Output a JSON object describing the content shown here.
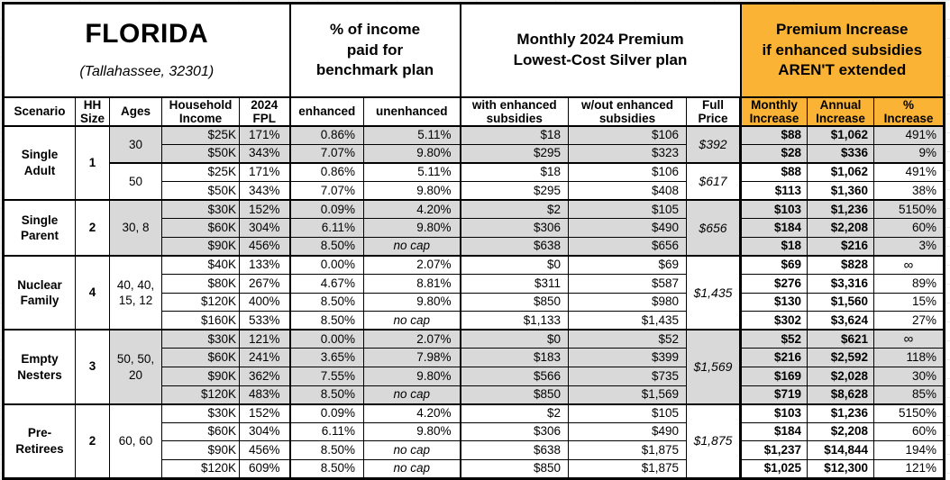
{
  "title": {
    "state": "FLORIDA",
    "location": "(Tallahassee, 32301)"
  },
  "colors": {
    "header_accent": "#FAB334",
    "row_shade": "#D9D9D9",
    "grid": "#000000"
  },
  "header_groups": {
    "benchmark": "% of income\npaid for\nbenchmark plan",
    "premium": "Monthly 2024 Premium\nLowest-Cost Silver plan",
    "increase": "Premium Increase\nif enhanced subsidies\nAREN'T extended"
  },
  "columns": [
    "Scenario",
    "HH\nSize",
    "Ages",
    "Household\nIncome",
    "2024\nFPL",
    "enhanced",
    "unenhanced",
    "with enhanced\nsubsidies",
    "w/out enhanced\nsubsidies",
    "Full\nPrice",
    "Monthly\nIncrease",
    "Annual\nIncrease",
    "%\nIncrease"
  ],
  "scenarios": [
    {
      "name": "Single\nAdult",
      "hh_size": "1",
      "groups": [
        {
          "ages": "30",
          "shaded": true,
          "full_price": "$392",
          "rows": [
            {
              "income": "$25K",
              "fpl": "171%",
              "enhanced": "0.86%",
              "unenhanced": "5.11%",
              "with_subsidies": "$18",
              "without_subsidies": "$106",
              "monthly_increase": "$88",
              "annual_increase": "$1,062",
              "pct_increase": "491%"
            },
            {
              "income": "$50K",
              "fpl": "343%",
              "enhanced": "7.07%",
              "unenhanced": "9.80%",
              "with_subsidies": "$295",
              "without_subsidies": "$323",
              "monthly_increase": "$28",
              "annual_increase": "$336",
              "pct_increase": "9%"
            }
          ]
        },
        {
          "ages": "50",
          "shaded": false,
          "full_price": "$617",
          "rows": [
            {
              "income": "$25K",
              "fpl": "171%",
              "enhanced": "0.86%",
              "unenhanced": "5.11%",
              "with_subsidies": "$18",
              "without_subsidies": "$106",
              "monthly_increase": "$88",
              "annual_increase": "$1,062",
              "pct_increase": "491%"
            },
            {
              "income": "$50K",
              "fpl": "343%",
              "enhanced": "7.07%",
              "unenhanced": "9.80%",
              "with_subsidies": "$295",
              "without_subsidies": "$408",
              "monthly_increase": "$113",
              "annual_increase": "$1,360",
              "pct_increase": "38%"
            }
          ]
        }
      ]
    },
    {
      "name": "Single\nParent",
      "hh_size": "2",
      "groups": [
        {
          "ages": "30, 8",
          "shaded": true,
          "full_price": "$656",
          "rows": [
            {
              "income": "$30K",
              "fpl": "152%",
              "enhanced": "0.09%",
              "unenhanced": "4.20%",
              "with_subsidies": "$2",
              "without_subsidies": "$105",
              "monthly_increase": "$103",
              "annual_increase": "$1,236",
              "pct_increase": "5150%"
            },
            {
              "income": "$60K",
              "fpl": "304%",
              "enhanced": "6.11%",
              "unenhanced": "9.80%",
              "with_subsidies": "$306",
              "without_subsidies": "$490",
              "monthly_increase": "$184",
              "annual_increase": "$2,208",
              "pct_increase": "60%"
            },
            {
              "income": "$90K",
              "fpl": "456%",
              "enhanced": "8.50%",
              "unenhanced": "no cap",
              "with_subsidies": "$638",
              "without_subsidies": "$656",
              "monthly_increase": "$18",
              "annual_increase": "$216",
              "pct_increase": "3%"
            }
          ]
        }
      ]
    },
    {
      "name": "Nuclear\nFamily",
      "hh_size": "4",
      "groups": [
        {
          "ages": "40, 40,\n15, 12",
          "shaded": false,
          "full_price": "$1,435",
          "rows": [
            {
              "income": "$40K",
              "fpl": "133%",
              "enhanced": "0.00%",
              "unenhanced": "2.07%",
              "with_subsidies": "$0",
              "without_subsidies": "$69",
              "monthly_increase": "$69",
              "annual_increase": "$828",
              "pct_increase": "∞"
            },
            {
              "income": "$80K",
              "fpl": "267%",
              "enhanced": "4.67%",
              "unenhanced": "8.81%",
              "with_subsidies": "$311",
              "without_subsidies": "$587",
              "monthly_increase": "$276",
              "annual_increase": "$3,316",
              "pct_increase": "89%"
            },
            {
              "income": "$120K",
              "fpl": "400%",
              "enhanced": "8.50%",
              "unenhanced": "9.80%",
              "with_subsidies": "$850",
              "without_subsidies": "$980",
              "monthly_increase": "$130",
              "annual_increase": "$1,560",
              "pct_increase": "15%"
            },
            {
              "income": "$160K",
              "fpl": "533%",
              "enhanced": "8.50%",
              "unenhanced": "no cap",
              "with_subsidies": "$1,133",
              "without_subsidies": "$1,435",
              "monthly_increase": "$302",
              "annual_increase": "$3,624",
              "pct_increase": "27%"
            }
          ]
        }
      ]
    },
    {
      "name": "Empty\nNesters",
      "hh_size": "3",
      "groups": [
        {
          "ages": "50, 50,\n20",
          "shaded": true,
          "full_price": "$1,569",
          "rows": [
            {
              "income": "$30K",
              "fpl": "121%",
              "enhanced": "0.00%",
              "unenhanced": "2.07%",
              "with_subsidies": "$0",
              "without_subsidies": "$52",
              "monthly_increase": "$52",
              "annual_increase": "$621",
              "pct_increase": "∞"
            },
            {
              "income": "$60K",
              "fpl": "241%",
              "enhanced": "3.65%",
              "unenhanced": "7.98%",
              "with_subsidies": "$183",
              "without_subsidies": "$399",
              "monthly_increase": "$216",
              "annual_increase": "$2,592",
              "pct_increase": "118%"
            },
            {
              "income": "$90K",
              "fpl": "362%",
              "enhanced": "7.55%",
              "unenhanced": "9.80%",
              "with_subsidies": "$566",
              "without_subsidies": "$735",
              "monthly_increase": "$169",
              "annual_increase": "$2,028",
              "pct_increase": "30%"
            },
            {
              "income": "$120K",
              "fpl": "483%",
              "enhanced": "8.50%",
              "unenhanced": "no cap",
              "with_subsidies": "$850",
              "without_subsidies": "$1,569",
              "monthly_increase": "$719",
              "annual_increase": "$8,628",
              "pct_increase": "85%"
            }
          ]
        }
      ]
    },
    {
      "name": "Pre-\nRetirees",
      "hh_size": "2",
      "groups": [
        {
          "ages": "60, 60",
          "shaded": false,
          "full_price": "$1,875",
          "rows": [
            {
              "income": "$30K",
              "fpl": "152%",
              "enhanced": "0.09%",
              "unenhanced": "4.20%",
              "with_subsidies": "$2",
              "without_subsidies": "$105",
              "monthly_increase": "$103",
              "annual_increase": "$1,236",
              "pct_increase": "5150%"
            },
            {
              "income": "$60K",
              "fpl": "304%",
              "enhanced": "6.11%",
              "unenhanced": "9.80%",
              "with_subsidies": "$306",
              "without_subsidies": "$490",
              "monthly_increase": "$184",
              "annual_increase": "$2,208",
              "pct_increase": "60%"
            },
            {
              "income": "$90K",
              "fpl": "456%",
              "enhanced": "8.50%",
              "unenhanced": "no cap",
              "with_subsidies": "$638",
              "without_subsidies": "$1,875",
              "monthly_increase": "$1,237",
              "annual_increase": "$14,844",
              "pct_increase": "194%"
            },
            {
              "income": "$120K",
              "fpl": "609%",
              "enhanced": "8.50%",
              "unenhanced": "no cap",
              "with_subsidies": "$850",
              "without_subsidies": "$1,875",
              "monthly_increase": "$1,025",
              "annual_increase": "$12,300",
              "pct_increase": "121%"
            }
          ]
        }
      ]
    }
  ]
}
